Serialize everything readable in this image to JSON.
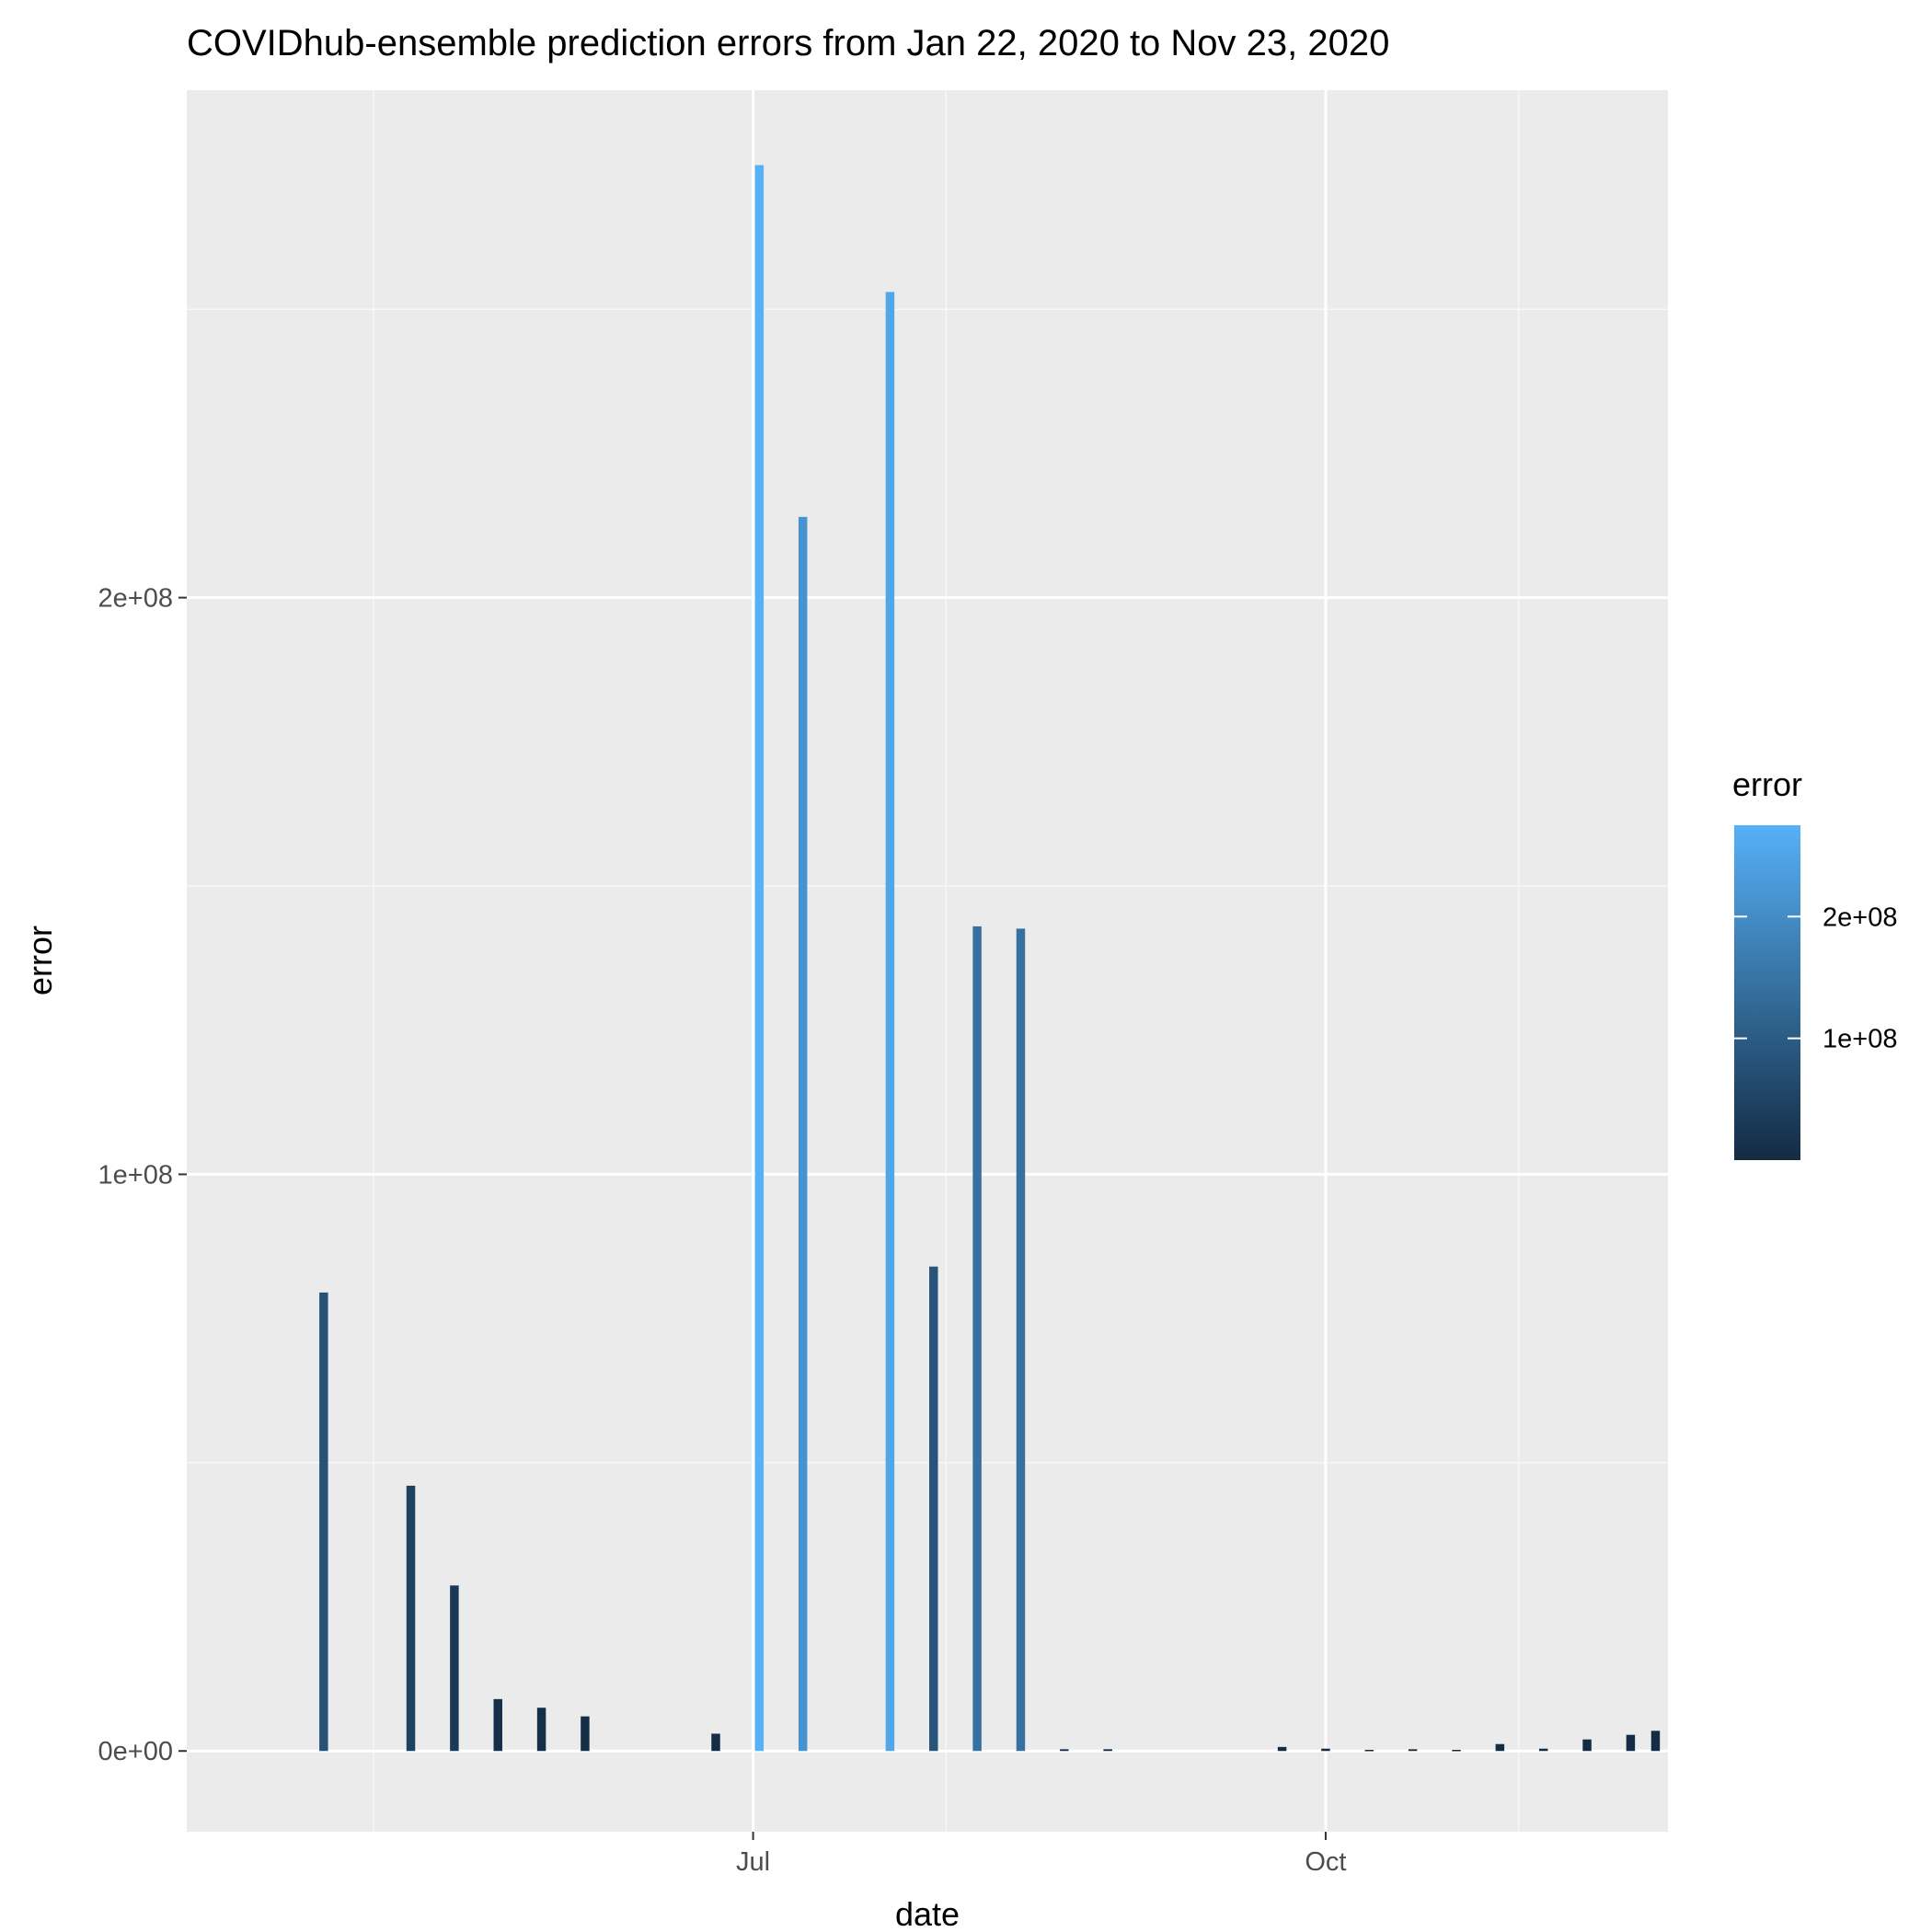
{
  "chart_data": {
    "type": "bar",
    "title": "COVIDhub-ensemble prediction errors from Jan 22, 2020 to Nov 23, 2020",
    "xlabel": "date",
    "ylabel": "error",
    "x_ticks": [
      {
        "date": "2020-07-01",
        "label": "Jul"
      },
      {
        "date": "2020-10-01",
        "label": "Oct"
      }
    ],
    "x_minor_grid": [
      "2020-05-01",
      "2020-08-01",
      "2020-11-01"
    ],
    "xlim": [
      "2020-04-01",
      "2020-11-25"
    ],
    "y_ticks": [
      {
        "value": 0,
        "label": "0e+00"
      },
      {
        "value": 100000000,
        "label": "1e+08"
      },
      {
        "value": 200000000,
        "label": "2e+08"
      }
    ],
    "y_minor_grid": [
      50000000,
      150000000,
      250000000
    ],
    "ylim": [
      -14000000,
      288000000
    ],
    "grid": true,
    "series": [
      {
        "x": [
          "2020-04-23",
          "2020-05-07",
          "2020-05-14",
          "2020-05-21",
          "2020-05-28",
          "2020-06-04",
          "2020-06-25",
          "2020-07-02",
          "2020-07-09",
          "2020-07-23",
          "2020-07-30",
          "2020-08-06",
          "2020-08-13",
          "2020-08-20",
          "2020-08-27",
          "2020-09-24",
          "2020-10-01",
          "2020-10-08",
          "2020-10-15",
          "2020-10-22",
          "2020-10-29",
          "2020-11-05",
          "2020-11-12",
          "2020-11-19",
          "2020-11-23"
        ],
        "values": [
          79500000,
          46000000,
          28700000,
          9000000,
          7500000,
          6000000,
          3000000,
          275000000,
          214000000,
          253000000,
          84000000,
          143000000,
          142600000,
          300000,
          300000,
          700000,
          400000,
          200000,
          300000,
          200000,
          1200000,
          400000,
          2000000,
          2800000,
          3500000
        ]
      }
    ],
    "legend": {
      "title": "error",
      "placement": "right",
      "type": "colorbar",
      "low_color": "#132B43",
      "high_color": "#56B1F7",
      "range": [
        0,
        275000000
      ],
      "ticks": [
        {
          "value": 100000000,
          "label": "1e+08"
        },
        {
          "value": 200000000,
          "label": "2e+08"
        }
      ]
    },
    "colors": {
      "panel_background": "#ebebeb",
      "grid_major": "#ffffff",
      "grid_minor": "#f7f7f7",
      "tick_text": "#4d4d4d",
      "tick_mark": "#333333"
    }
  }
}
